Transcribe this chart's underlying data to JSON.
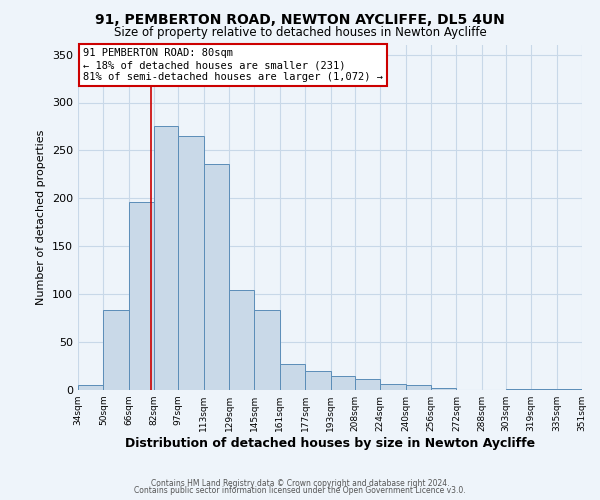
{
  "title1": "91, PEMBERTON ROAD, NEWTON AYCLIFFE, DL5 4UN",
  "title2": "Size of property relative to detached houses in Newton Aycliffe",
  "xlabel": "Distribution of detached houses by size in Newton Aycliffe",
  "ylabel": "Number of detached properties",
  "footer1": "Contains HM Land Registry data © Crown copyright and database right 2024.",
  "footer2": "Contains public sector information licensed under the Open Government Licence v3.0.",
  "annotation_line1": "91 PEMBERTON ROAD: 80sqm",
  "annotation_line2": "← 18% of detached houses are smaller (231)",
  "annotation_line3": "81% of semi-detached houses are larger (1,072) →",
  "bar_color": "#c9d9e8",
  "bar_edge_color": "#5b8db8",
  "property_line_x": 80,
  "bin_edges": [
    34,
    50,
    66,
    82,
    97,
    113,
    129,
    145,
    161,
    177,
    193,
    208,
    224,
    240,
    256,
    272,
    288,
    303,
    319,
    335,
    351
  ],
  "bin_counts": [
    5,
    84,
    196,
    275,
    265,
    236,
    104,
    84,
    27,
    20,
    15,
    12,
    6,
    5,
    2,
    0,
    0,
    1,
    1,
    1
  ],
  "ylim": [
    0,
    360
  ],
  "yticks": [
    0,
    50,
    100,
    150,
    200,
    250,
    300,
    350
  ],
  "xtick_labels": [
    "34sqm",
    "50sqm",
    "66sqm",
    "82sqm",
    "97sqm",
    "113sqm",
    "129sqm",
    "145sqm",
    "161sqm",
    "177sqm",
    "193sqm",
    "208sqm",
    "224sqm",
    "240sqm",
    "256sqm",
    "272sqm",
    "288sqm",
    "303sqm",
    "319sqm",
    "335sqm",
    "351sqm"
  ],
  "annotation_box_color": "#ffffff",
  "annotation_box_edge": "#cc0000",
  "property_line_color": "#cc0000",
  "grid_color": "#c8d8e8",
  "background_color": "#eef4fa"
}
